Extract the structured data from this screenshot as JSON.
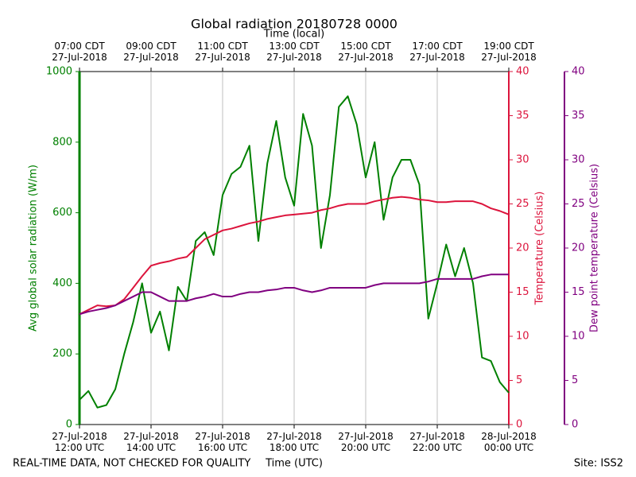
{
  "chart_data": {
    "type": "line",
    "title": "Global radiation 20180728 0000",
    "x_label": "Time (UTC)",
    "x2_label": "Time (local)",
    "y_label": "Avg global solar radiation (W/m)",
    "y2_label": "Temperature (Celsius)",
    "y3_label": "Dew point temperature (Celsius)",
    "footer_left": "REAL-TIME DATA, NOT CHECKED FOR QUALITY",
    "footer_right": "Site: ISS2",
    "grid": true,
    "x": [
      "2018-07-27 12:00",
      "2018-07-27 12:15",
      "2018-07-27 12:30",
      "2018-07-27 12:45",
      "2018-07-27 13:00",
      "2018-07-27 13:15",
      "2018-07-27 13:30",
      "2018-07-27 13:45",
      "2018-07-27 14:00",
      "2018-07-27 14:15",
      "2018-07-27 14:30",
      "2018-07-27 14:45",
      "2018-07-27 15:00",
      "2018-07-27 15:15",
      "2018-07-27 15:30",
      "2018-07-27 15:45",
      "2018-07-27 16:00",
      "2018-07-27 16:15",
      "2018-07-27 16:30",
      "2018-07-27 16:45",
      "2018-07-27 17:00",
      "2018-07-27 17:15",
      "2018-07-27 17:30",
      "2018-07-27 17:45",
      "2018-07-27 18:00",
      "2018-07-27 18:15",
      "2018-07-27 18:30",
      "2018-07-27 18:45",
      "2018-07-27 19:00",
      "2018-07-27 19:15",
      "2018-07-27 19:30",
      "2018-07-27 19:45",
      "2018-07-27 20:00",
      "2018-07-27 20:15",
      "2018-07-27 20:30",
      "2018-07-27 20:45",
      "2018-07-27 21:00",
      "2018-07-27 21:15",
      "2018-07-27 21:30",
      "2018-07-27 21:45",
      "2018-07-27 22:00",
      "2018-07-27 22:15",
      "2018-07-27 22:30",
      "2018-07-27 22:45",
      "2018-07-27 23:00",
      "2018-07-27 23:15",
      "2018-07-27 23:30",
      "2018-07-27 23:45",
      "2018-07-28 00:00"
    ],
    "xlim": [
      "2018-07-27 12:00",
      "2018-07-28 00:00"
    ],
    "xticks": [
      {
        "value": "2018-07-27 12:00",
        "label": "27-Jul-2018\n12:00 UTC"
      },
      {
        "value": "2018-07-27 14:00",
        "label": "27-Jul-2018\n14:00 UTC"
      },
      {
        "value": "2018-07-27 16:00",
        "label": "27-Jul-2018\n16:00 UTC"
      },
      {
        "value": "2018-07-27 18:00",
        "label": "27-Jul-2018\n18:00 UTC"
      },
      {
        "value": "2018-07-27 20:00",
        "label": "27-Jul-2018\n20:00 UTC"
      },
      {
        "value": "2018-07-27 22:00",
        "label": "27-Jul-2018\n22:00 UTC"
      },
      {
        "value": "2018-07-28 00:00",
        "label": "28-Jul-2018\n00:00 UTC"
      }
    ],
    "x2ticks": [
      {
        "value": "2018-07-27 12:00",
        "label": "07:00 CDT\n27-Jul-2018"
      },
      {
        "value": "2018-07-27 14:00",
        "label": "09:00 CDT\n27-Jul-2018"
      },
      {
        "value": "2018-07-27 16:00",
        "label": "11:00 CDT\n27-Jul-2018"
      },
      {
        "value": "2018-07-27 18:00",
        "label": "13:00 CDT\n27-Jul-2018"
      },
      {
        "value": "2018-07-27 20:00",
        "label": "15:00 CDT\n27-Jul-2018"
      },
      {
        "value": "2018-07-27 22:00",
        "label": "17:00 CDT\n27-Jul-2018"
      },
      {
        "value": "2018-07-28 00:00",
        "label": "19:00 CDT\n27-Jul-2018"
      }
    ],
    "ylim": [
      0,
      1000
    ],
    "yticks": [
      0,
      200,
      400,
      600,
      800,
      1000
    ],
    "y_color": "green",
    "y2lim": [
      0,
      40
    ],
    "y2ticks": [
      0,
      5,
      10,
      15,
      20,
      25,
      30,
      35,
      40
    ],
    "y2_color": "crimson",
    "y3lim": [
      0,
      40
    ],
    "y3ticks": [
      0,
      5,
      10,
      15,
      20,
      25,
      30,
      35,
      40
    ],
    "y3_color": "purple",
    "series": [
      {
        "name": "Avg global solar radiation",
        "color": "green",
        "axis": "y",
        "values": [
          70,
          95,
          48,
          55,
          100,
          200,
          290,
          400,
          260,
          320,
          210,
          390,
          350,
          520,
          545,
          480,
          650,
          710,
          730,
          790,
          520,
          740,
          860,
          700,
          620,
          880,
          790,
          500,
          650,
          900,
          930,
          850,
          700,
          800,
          580,
          700,
          750,
          750,
          680,
          300,
          400,
          510,
          420,
          500,
          400,
          190,
          180,
          120,
          90
        ]
      },
      {
        "name": "Temperature",
        "color": "crimson",
        "axis": "y2",
        "values": [
          12.5,
          13,
          13.5,
          13.4,
          13.5,
          14.2,
          15.5,
          16.8,
          18,
          18.3,
          18.5,
          18.8,
          19,
          20,
          21,
          21.5,
          22,
          22.2,
          22.5,
          22.8,
          23,
          23.3,
          23.5,
          23.7,
          23.8,
          23.9,
          24,
          24.3,
          24.5,
          24.8,
          25,
          25,
          25,
          25.3,
          25.5,
          25.7,
          25.8,
          25.7,
          25.5,
          25.4,
          25.2,
          25.2,
          25.3,
          25.3,
          25.3,
          25,
          24.5,
          24.2,
          23.8
        ]
      },
      {
        "name": "Dew point temperature",
        "color": "purple",
        "axis": "y3",
        "values": [
          12.5,
          12.8,
          13,
          13.2,
          13.5,
          14,
          14.5,
          15,
          15,
          14.5,
          14,
          14,
          14,
          14.3,
          14.5,
          14.8,
          14.5,
          14.5,
          14.8,
          15,
          15,
          15.2,
          15.3,
          15.5,
          15.5,
          15.2,
          15,
          15.2,
          15.5,
          15.5,
          15.5,
          15.5,
          15.5,
          15.8,
          16,
          16,
          16,
          16,
          16,
          16.2,
          16.5,
          16.5,
          16.5,
          16.5,
          16.5,
          16.8,
          17,
          17,
          17
        ]
      }
    ]
  }
}
